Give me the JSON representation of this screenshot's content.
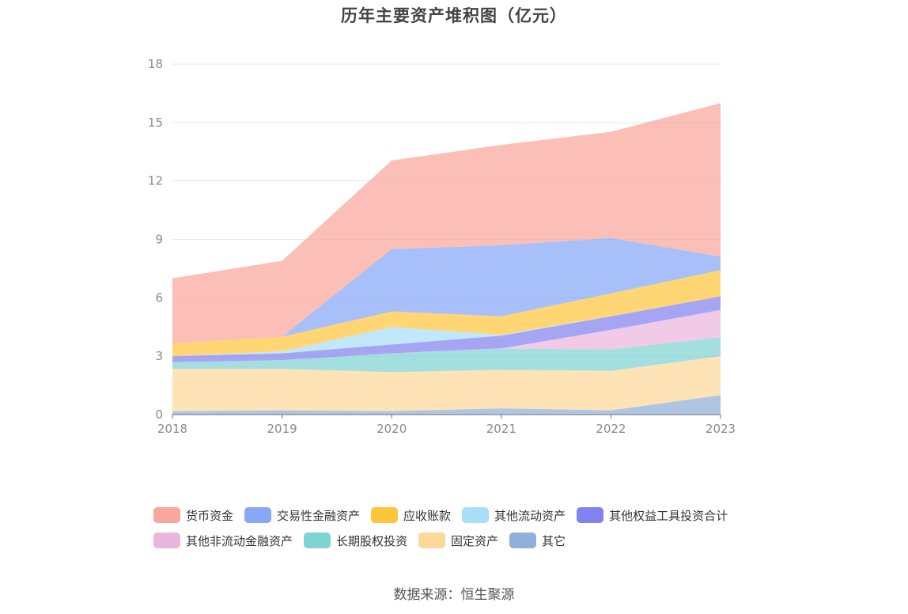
{
  "chart_data": {
    "type": "area",
    "stacked": true,
    "title": "历年主要资产堆积图（亿元）",
    "xlabel": "",
    "ylabel": "",
    "categories": [
      "2018",
      "2019",
      "2020",
      "2021",
      "2022",
      "2023"
    ],
    "ylim": [
      0,
      18
    ],
    "yticks": [
      0,
      3,
      6,
      9,
      12,
      15,
      18
    ],
    "grid": true,
    "legend_position": "bottom",
    "series": [
      {
        "name": "其它",
        "color": "#8fb0da",
        "values": [
          0.18,
          0.22,
          0.18,
          0.32,
          0.22,
          1.0
        ]
      },
      {
        "name": "固定资产",
        "color": "#fcd899",
        "values": [
          2.17,
          2.13,
          2.0,
          1.98,
          2.03,
          2.0
        ]
      },
      {
        "name": "长期股权投资",
        "color": "#7fd3d3",
        "values": [
          0.35,
          0.45,
          0.97,
          1.08,
          1.1,
          0.97
        ]
      },
      {
        "name": "其他非流动金融资产",
        "color": "#eab6dc",
        "values": [
          0.0,
          0.0,
          0.0,
          0.02,
          1.0,
          1.4
        ]
      },
      {
        "name": "其他权益工具投资合计",
        "color": "#8282f0",
        "values": [
          0.3,
          0.35,
          0.45,
          0.65,
          0.7,
          0.7
        ]
      },
      {
        "name": "其他流动资产",
        "color": "#a8def8",
        "values": [
          0.0,
          0.1,
          0.9,
          0.05,
          0.02,
          0.0
        ]
      },
      {
        "name": "应收账款",
        "color": "#ffc63d",
        "values": [
          0.65,
          0.75,
          0.8,
          0.95,
          1.15,
          1.35
        ]
      },
      {
        "name": "交易性金融资产",
        "color": "#87a8f8",
        "values": [
          0.0,
          0.0,
          3.2,
          3.65,
          2.85,
          0.7
        ]
      },
      {
        "name": "货币资金",
        "color": "#f9a69d",
        "values": [
          3.35,
          3.9,
          4.55,
          5.15,
          5.45,
          7.88
        ]
      }
    ]
  },
  "legend": {
    "rows": [
      [
        {
          "label": "货币资金",
          "color": "#f9a69d"
        },
        {
          "label": "交易性金融资产",
          "color": "#87a8f8"
        },
        {
          "label": "应收账款",
          "color": "#ffc63d"
        },
        {
          "label": "其他流动资产",
          "color": "#a8def8"
        },
        {
          "label": "其他权益工具投资合计",
          "color": "#8282f0"
        }
      ],
      [
        {
          "label": "其他非流动金融资产",
          "color": "#eab6dc"
        },
        {
          "label": "长期股权投资",
          "color": "#7fd3d3"
        },
        {
          "label": "固定资产",
          "color": "#fcd899"
        },
        {
          "label": "其它",
          "color": "#8fb0da"
        }
      ]
    ]
  },
  "source": "数据来源：恒生聚源"
}
